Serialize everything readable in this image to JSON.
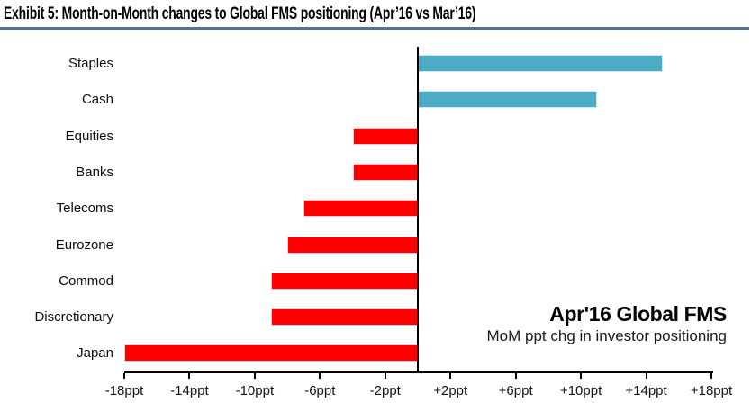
{
  "title": "Exhibit 5: Month-on-Month changes to Global FMS positioning (Apr’16 vs Mar’16)",
  "colors": {
    "positive_bar": "#4BACC6",
    "negative_bar": "#FF0000",
    "title_rule": "#54748F",
    "axis": "#000000"
  },
  "chart_data": {
    "type": "bar",
    "orientation": "horizontal",
    "title": "Apr'16 Global FMS",
    "subtitle": "MoM ppt chg in investor positioning",
    "unit": "ppt",
    "categories": [
      "Staples",
      "Cash",
      "Equities",
      "Banks",
      "Telecoms",
      "Eurozone",
      "Commod",
      "Discretionary",
      "Japan"
    ],
    "values": [
      15,
      11,
      -4,
      -4,
      -7,
      -8,
      -9,
      -9,
      -18
    ],
    "xlim": [
      -18,
      18
    ],
    "x_ticks": [
      -18,
      -14,
      -10,
      -6,
      -2,
      2,
      6,
      10,
      14,
      18
    ],
    "x_tick_labels": [
      "-18ppt",
      "-14ppt",
      "-10ppt",
      "-6ppt",
      "-2ppt",
      "+2ppt",
      "+6ppt",
      "+10ppt",
      "+14ppt",
      "+18ppt"
    ],
    "grid": false,
    "legend": "none"
  }
}
